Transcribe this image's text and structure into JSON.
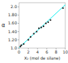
{
  "chart_data": {
    "type": "scatter",
    "xlabel": "X₂ (mol de silane)",
    "ylabel": "α",
    "xlim": [
      0,
      10
    ],
    "ylim": [
      1.0,
      2.1
    ],
    "xticks": [
      0,
      2,
      4,
      6,
      8,
      10
    ],
    "yticks": [
      {
        "value": 1.0,
        "label": "1.0"
      },
      {
        "value": 1.2,
        "label": "1.20"
      },
      {
        "value": 1.4,
        "label": "1.40"
      },
      {
        "value": 1.6,
        "label": "1.60"
      },
      {
        "value": 1.8,
        "label": "1.80"
      },
      {
        "value": 2.0,
        "label": "2.0"
      }
    ],
    "series": [
      {
        "type": "line",
        "color": "#00EFEF",
        "x": [
          0.0,
          10.0
        ],
        "values": [
          1.01,
          2.05
        ]
      },
      {
        "type": "scatter",
        "color": "#222222",
        "x": [
          0.3,
          0.5,
          1.0,
          2.0,
          2.5,
          3.2,
          3.8,
          4.3,
          4.8,
          5.3,
          5.8,
          6.3,
          6.8,
          9.5
        ],
        "values": [
          1.04,
          1.07,
          1.1,
          1.2,
          1.27,
          1.35,
          1.4,
          1.48,
          1.5,
          1.53,
          1.6,
          1.63,
          1.68,
          1.97
        ]
      }
    ]
  }
}
